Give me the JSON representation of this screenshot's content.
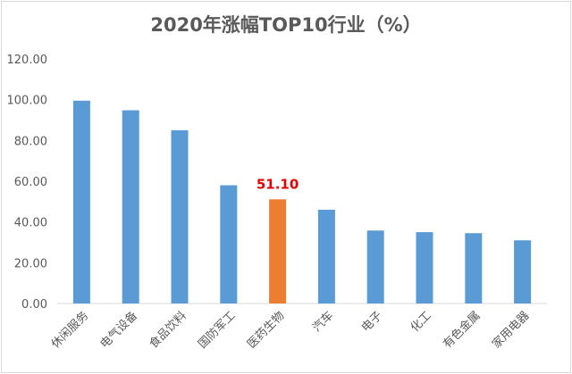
{
  "chart_data": {
    "type": "bar",
    "title": "2020年涨幅TOP10行业（%）",
    "xlabel": "",
    "ylabel": "",
    "ylim": [
      0,
      120
    ],
    "yticks": [
      "0.00",
      "20.00",
      "40.00",
      "60.00",
      "80.00",
      "100.00",
      "120.00"
    ],
    "grid": false,
    "categories": [
      "休闲服务",
      "电气设备",
      "食品饮料",
      "国防军工",
      "医药生物",
      "汽车",
      "电子",
      "化工",
      "有色金属",
      "家用电器"
    ],
    "values": [
      99.5,
      94.8,
      85.0,
      58.0,
      51.1,
      46.0,
      35.8,
      35.0,
      34.5,
      31.0
    ],
    "highlight_index": 4,
    "highlight_label": "51.10",
    "colors": {
      "bar": "#5b9bd5",
      "highlight": "#ed7d31",
      "label": "#e60000",
      "axis": "#d9d9d9",
      "text": "#595959"
    }
  }
}
